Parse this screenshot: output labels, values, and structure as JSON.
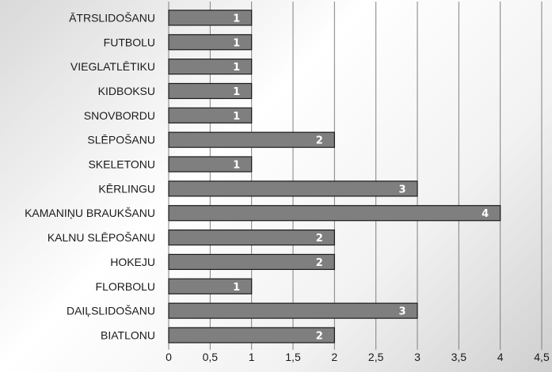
{
  "chart_data": {
    "type": "bar",
    "orientation": "horizontal",
    "categories": [
      "ĀTRSLIDOŠANU",
      "FUTBOLU",
      "VIEGLATLĒTIKU",
      "KIDBOKSU",
      "SNOVBORDU",
      "SLĒPOŠANU",
      "SKELETONU",
      "KĒRLINGU",
      "KAMANIŅU BRAUKŠANU",
      "KALNU SLĒPOŠANU",
      "HOKEJU",
      "FLORBOLU",
      "DAIĻSLIDOŠANU",
      "BIATLONU"
    ],
    "values": [
      1,
      1,
      1,
      1,
      1,
      2,
      1,
      3,
      4,
      2,
      2,
      1,
      3,
      2
    ],
    "xlim": [
      0,
      4.5
    ],
    "ticks": [
      "0",
      "0,5",
      "1",
      "1,5",
      "2",
      "2,5",
      "3",
      "3,5",
      "4",
      "4,5"
    ],
    "tick_values": [
      0,
      0.5,
      1,
      1.5,
      2,
      2.5,
      3,
      3.5,
      4,
      4.5
    ],
    "grid": "vertical",
    "legend": "none",
    "bar_color": "#7f7f7f",
    "bar_edge_color": "#1a1a1a",
    "grid_color": "#808080"
  }
}
